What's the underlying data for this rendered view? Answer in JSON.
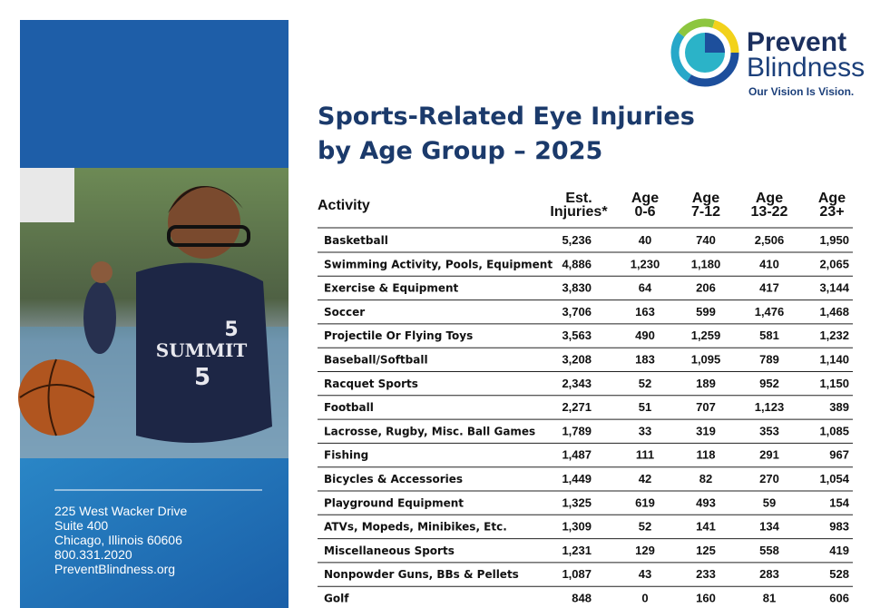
{
  "logo": {
    "line1": "Prevent",
    "line2": "Blindness",
    "tagline": "Our Vision Is Vision."
  },
  "title": {
    "line1": "Sports-Related Eye Injuries",
    "line2": "by Age Group – 2025"
  },
  "photo": {
    "jersey_text": "SUMMIT",
    "jersey_number": "5"
  },
  "address": [
    "225 West Wacker Drive",
    "Suite 400",
    "Chicago, Illinois 60606",
    "800.331.2020",
    "PreventBlindness.org"
  ],
  "table": {
    "header": [
      [
        "Activity"
      ],
      [
        "Est.",
        "Injuries*"
      ],
      [
        "Age",
        "0-6"
      ],
      [
        "Age",
        "7-12"
      ],
      [
        "Age",
        "13-22"
      ],
      [
        "Age",
        "23+"
      ]
    ],
    "rows": [
      [
        "Basketball",
        "5,236",
        "40",
        "740",
        "2,506",
        "1,950"
      ],
      [
        "Swimming Activity, Pools, Equipment",
        "4,886",
        "1,230",
        "1,180",
        "410",
        "2,065"
      ],
      [
        "Exercise & Equipment",
        "3,830",
        "64",
        "206",
        "417",
        "3,144"
      ],
      [
        "Soccer",
        "3,706",
        "163",
        "599",
        "1,476",
        "1,468"
      ],
      [
        "Projectile Or Flying Toys",
        "3,563",
        "490",
        "1,259",
        "581",
        "1,232"
      ],
      [
        "Baseball/Softball",
        "3,208",
        "183",
        "1,095",
        "789",
        "1,140"
      ],
      [
        "Racquet Sports",
        "2,343",
        "52",
        "189",
        "952",
        "1,150"
      ],
      [
        "Football",
        "2,271",
        "51",
        "707",
        "1,123",
        "389"
      ],
      [
        "Lacrosse, Rugby, Misc. Ball Games",
        "1,789",
        "33",
        "319",
        "353",
        "1,085"
      ],
      [
        "Fishing",
        "1,487",
        "111",
        "118",
        "291",
        "967"
      ],
      [
        "Bicycles & Accessories",
        "1,449",
        "42",
        "82",
        "270",
        "1,054"
      ],
      [
        "Playground Equipment",
        "1,325",
        "619",
        "493",
        "59",
        "154"
      ],
      [
        "ATVs, Mopeds, Minibikes, Etc.",
        "1,309",
        "52",
        "141",
        "134",
        "983"
      ],
      [
        "Miscellaneous Sports",
        "1,231",
        "129",
        "125",
        "558",
        "419"
      ],
      [
        "Nonpowder Guns, BBs & Pellets",
        "1,087",
        "43",
        "233",
        "283",
        "528"
      ],
      [
        "Golf",
        "848",
        "0",
        "160",
        "81",
        "606"
      ]
    ]
  }
}
